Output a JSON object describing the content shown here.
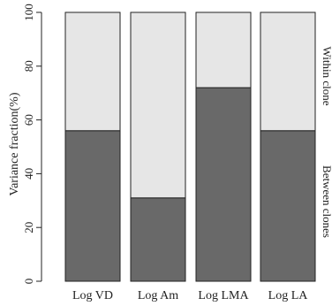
{
  "chart_data": {
    "type": "bar",
    "stacked": true,
    "categories": [
      "Log VD",
      "Log Am",
      "Log LMA",
      "Log LA"
    ],
    "series": [
      {
        "name": "Between clones",
        "values": [
          56,
          31,
          72,
          56
        ],
        "color": "#696969"
      },
      {
        "name": "Within clone",
        "values": [
          44,
          69,
          28,
          44
        ],
        "color": "#e6e6e6"
      }
    ],
    "ylabel": "Variance fraction(%)",
    "ylim": [
      0,
      100
    ],
    "yticks": [
      0,
      20,
      40,
      60,
      80,
      100
    ],
    "grid": false,
    "legend": "right side labels (rotated)"
  }
}
